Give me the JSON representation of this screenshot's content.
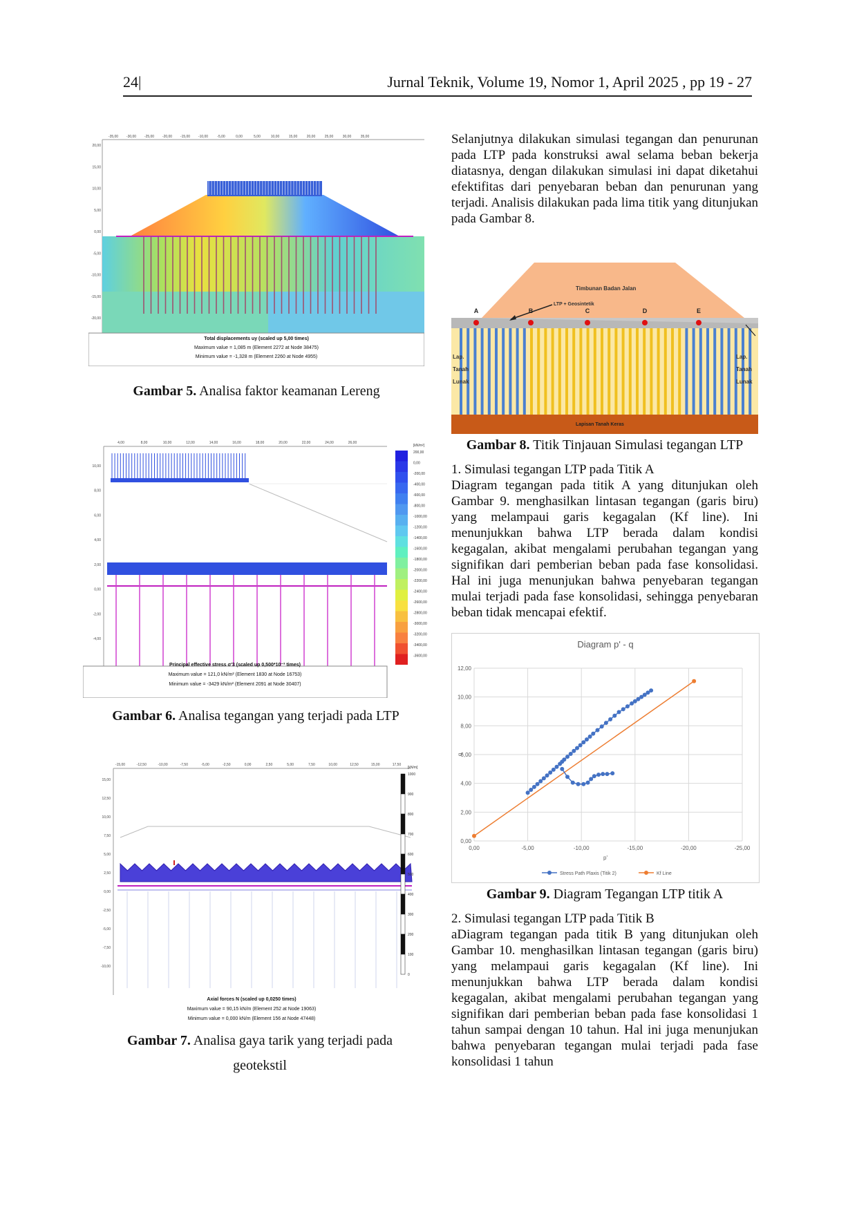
{
  "header": {
    "page_number": "24|",
    "journal": "Jurnal Teknik, Volume 19, Nomor 1, April 2025 , pp 19 - 27"
  },
  "left": {
    "fig5": {
      "top_ticks": [
        "-35,00",
        "-30,00",
        "-25,00",
        "-20,00",
        "-15,00",
        "-10,00",
        "-5,00",
        "0,00",
        "5,00",
        "10,00",
        "15,00",
        "20,00",
        "25,00",
        "30,00",
        "35,00"
      ],
      "left_ticks": [
        "20,00",
        "15,00",
        "10,00",
        "5,00",
        "0,00",
        "-5,00",
        "-10,00",
        "-15,00",
        "-20,00"
      ],
      "legend_title": "Total displacements uy (scaled up 5,00 times)",
      "legend_max": "Maximum value = 1,085 m (Element 2272 at Node 38475)",
      "legend_min": "Minimum value = -1,328 m (Element 2260 at Node 4955)",
      "caption_bold": "Gambar 5.",
      "caption_text": " Analisa faktor keamanan Lereng"
    },
    "fig6": {
      "top_ticks": [
        "4,00",
        "8,00",
        "10,00",
        "12,00",
        "14,00",
        "16,00",
        "18,00",
        "20,00",
        "22,00",
        "24,00",
        "26,00"
      ],
      "left_ticks": [
        "10,00",
        "8,00",
        "6,00",
        "4,00",
        "2,00",
        "0,00",
        "-2,00",
        "-4,00"
      ],
      "scale_unit": "[kN/m²]",
      "scale_values": [
        "200,00",
        "0,00",
        "-200,00",
        "-400,00",
        "-600,00",
        "-800,00",
        "-1000,00",
        "-1200,00",
        "-1400,00",
        "-1600,00",
        "-1800,00",
        "-2000,00",
        "-2200,00",
        "-2400,00",
        "-2600,00",
        "-2800,00",
        "-3000,00",
        "-3200,00",
        "-3400,00",
        "-3600,00"
      ],
      "legend_title": "Principal effective stress σ'3 (scaled up 0,500*10⁻³ times)",
      "legend_max": "Maximum value = 121,0 kN/m² (Element 1830 at Node 16753)",
      "legend_min": "Minimum value = -3429 kN/m² (Element 2091 at Node 30407)",
      "caption_bold": "Gambar 6.",
      "caption_text": " Analisa tegangan yang terjadi pada LTP"
    },
    "fig7": {
      "top_ticks": [
        "-15,00",
        "-12,50",
        "-10,00",
        "-7,50",
        "-5,00",
        "-2,50",
        "0,00",
        "2,50",
        "5,00",
        "7,50",
        "10,00",
        "12,50",
        "15,00",
        "17,50"
      ],
      "left_ticks": [
        "15,00",
        "12,50",
        "10,00",
        "7,50",
        "5,00",
        "2,50",
        "0,00",
        "-2,50",
        "-5,00",
        "-7,50",
        "-10,00"
      ],
      "scale_unit": "[kN/m]",
      "scale_values": [
        "1000",
        "900",
        "800",
        "700",
        "600",
        "500",
        "400",
        "300",
        "200",
        "100",
        "0"
      ],
      "legend_title": "Axial forces N (scaled up 0,0250 times)",
      "legend_max": "Maximum value = 90,15 kN/m (Element 252 at Node 19063)",
      "legend_min": "Minimum value = 0,000 kN/m (Element 156 at Node 47448)",
      "caption_bold": "Gambar 7.",
      "caption_text": " Analisa  gaya tarik yang  terjadi pada",
      "caption_line2": "geotekstil"
    }
  },
  "right": {
    "intro": "Selanjutnya dilakukan simulasi tegangan dan penurunan pada LTP pada konstruksi awal selama beban bekerja diatasnya, dengan dilakukan simulasi ini dapat diketahui efektifitas dari penyebaran beban dan penurunan yang terjadi. Analisis dilakukan pada lima titik yang ditunjukan pada Gambar 8.",
    "fig8": {
      "label_embankment": "Timbunan Badan Jalan",
      "label_ltp": "LTP + Geosintetik",
      "points": [
        "A",
        "B",
        "C",
        "D",
        "E"
      ],
      "label_soft_left": [
        "Lap.",
        "Tanah",
        "Lunak"
      ],
      "label_soft_right": [
        "Lap.",
        "Tanah",
        "Lunak"
      ],
      "label_hard": "Lapisan Tanah Keras",
      "caption_bold": "Gambar 8.",
      "caption_text": " Titik Tinjauan Simulasi tegangan LTP"
    },
    "sec1_title": "1. Simulasi tegangan LTP pada Titik A",
    "sec1_body": "Diagram tegangan pada titik A yang ditunjukan oleh Gambar 9. menghasilkan lintasan tegangan (garis biru) yang melampaui garis kegagalan (Kf line). Ini menunjukkan bahwa LTP berada dalam kondisi kegagalan, akibat mengalami perubahan tegangan yang signifikan dari pemberian beban pada fase konsolidasi. Hal ini juga menunjukan bahwa penyebaran tegangan mulai terjadi pada fase konsolidasi, sehingga penyebaran beban tidak mencapai efektif.",
    "fig9_caption_bold": "Gambar 9.",
    "fig9_caption_text": " Diagram Tegangan LTP titik A",
    "sec2_title": "2. Simulasi tegangan LTP pada Titik B",
    "sec2_body": "aDiagram tegangan pada titik B yang ditunjukan oleh Gambar 10. menghasilkan lintasan tegangan (garis biru) yang melampaui garis kegagalan (Kf line). Ini menunjukkan bahwa LTP berada dalam kondisi kegagalan, akibat mengalami perubahan tegangan yang signifikan dari pemberian beban pada fase konsolidasi 1 tahun sampai dengan 10 tahun. Hal ini juga menunjukan bahwa penyebaran tegangan mulai terjadi pada fase konsolidasi 1 tahun"
  },
  "chart_data": {
    "type": "line",
    "title": "Diagram p' - q",
    "xlabel": "p'",
    "ylabel": "q",
    "x_ticks": [
      "0,00",
      "-5,00",
      "-10,00",
      "-15,00",
      "-20,00",
      "-25,00"
    ],
    "y_ticks": [
      "0,00",
      "2,00",
      "4,00",
      "6,00",
      "8,00",
      "10,00",
      "12,00"
    ],
    "xlim": [
      0,
      -25
    ],
    "ylim": [
      0,
      12
    ],
    "legend_position": "bottom",
    "series": [
      {
        "name": "Stress Path Plaxis (Titik 2)",
        "color": "#4472c4",
        "marker": "circle",
        "x": [
          -5.0,
          -5.3,
          -5.6,
          -5.9,
          -6.2,
          -6.5,
          -6.8,
          -7.1,
          -7.4,
          -7.7,
          -8.0,
          -8.2,
          -8.4,
          -8.7,
          -9.0,
          -9.3,
          -9.6,
          -9.9,
          -10.2,
          -10.5,
          -10.8,
          -11.1,
          -11.5,
          -11.9,
          -12.3,
          -12.7,
          -13.1,
          -13.5,
          -13.9,
          -14.3,
          -14.7,
          -15.0,
          -15.3,
          -15.6,
          -15.9,
          -16.2,
          -16.5
        ],
        "y": [
          3.35,
          3.55,
          3.75,
          3.95,
          4.15,
          4.35,
          4.55,
          4.75,
          4.95,
          5.15,
          5.35,
          5.5,
          5.65,
          5.85,
          6.05,
          6.25,
          6.45,
          6.65,
          6.85,
          7.05,
          7.25,
          7.45,
          7.7,
          7.95,
          8.2,
          8.45,
          8.7,
          8.95,
          9.15,
          9.35,
          9.55,
          9.7,
          9.85,
          10.0,
          10.15,
          10.3,
          10.45
        ],
        "branch": {
          "x": [
            -8.2,
            -8.7,
            -9.2,
            -9.7,
            -10.2,
            -10.6,
            -10.9,
            -11.2,
            -11.6,
            -12.0,
            -12.4,
            -12.9
          ],
          "y": [
            5.0,
            4.45,
            4.05,
            3.95,
            3.95,
            4.05,
            4.3,
            4.5,
            4.6,
            4.65,
            4.65,
            4.7
          ]
        }
      },
      {
        "name": "Kf Line",
        "color": "#ed7d31",
        "marker": "circle-ends",
        "x": [
          0,
          -20.5
        ],
        "y": [
          0.35,
          11.1
        ]
      }
    ]
  }
}
